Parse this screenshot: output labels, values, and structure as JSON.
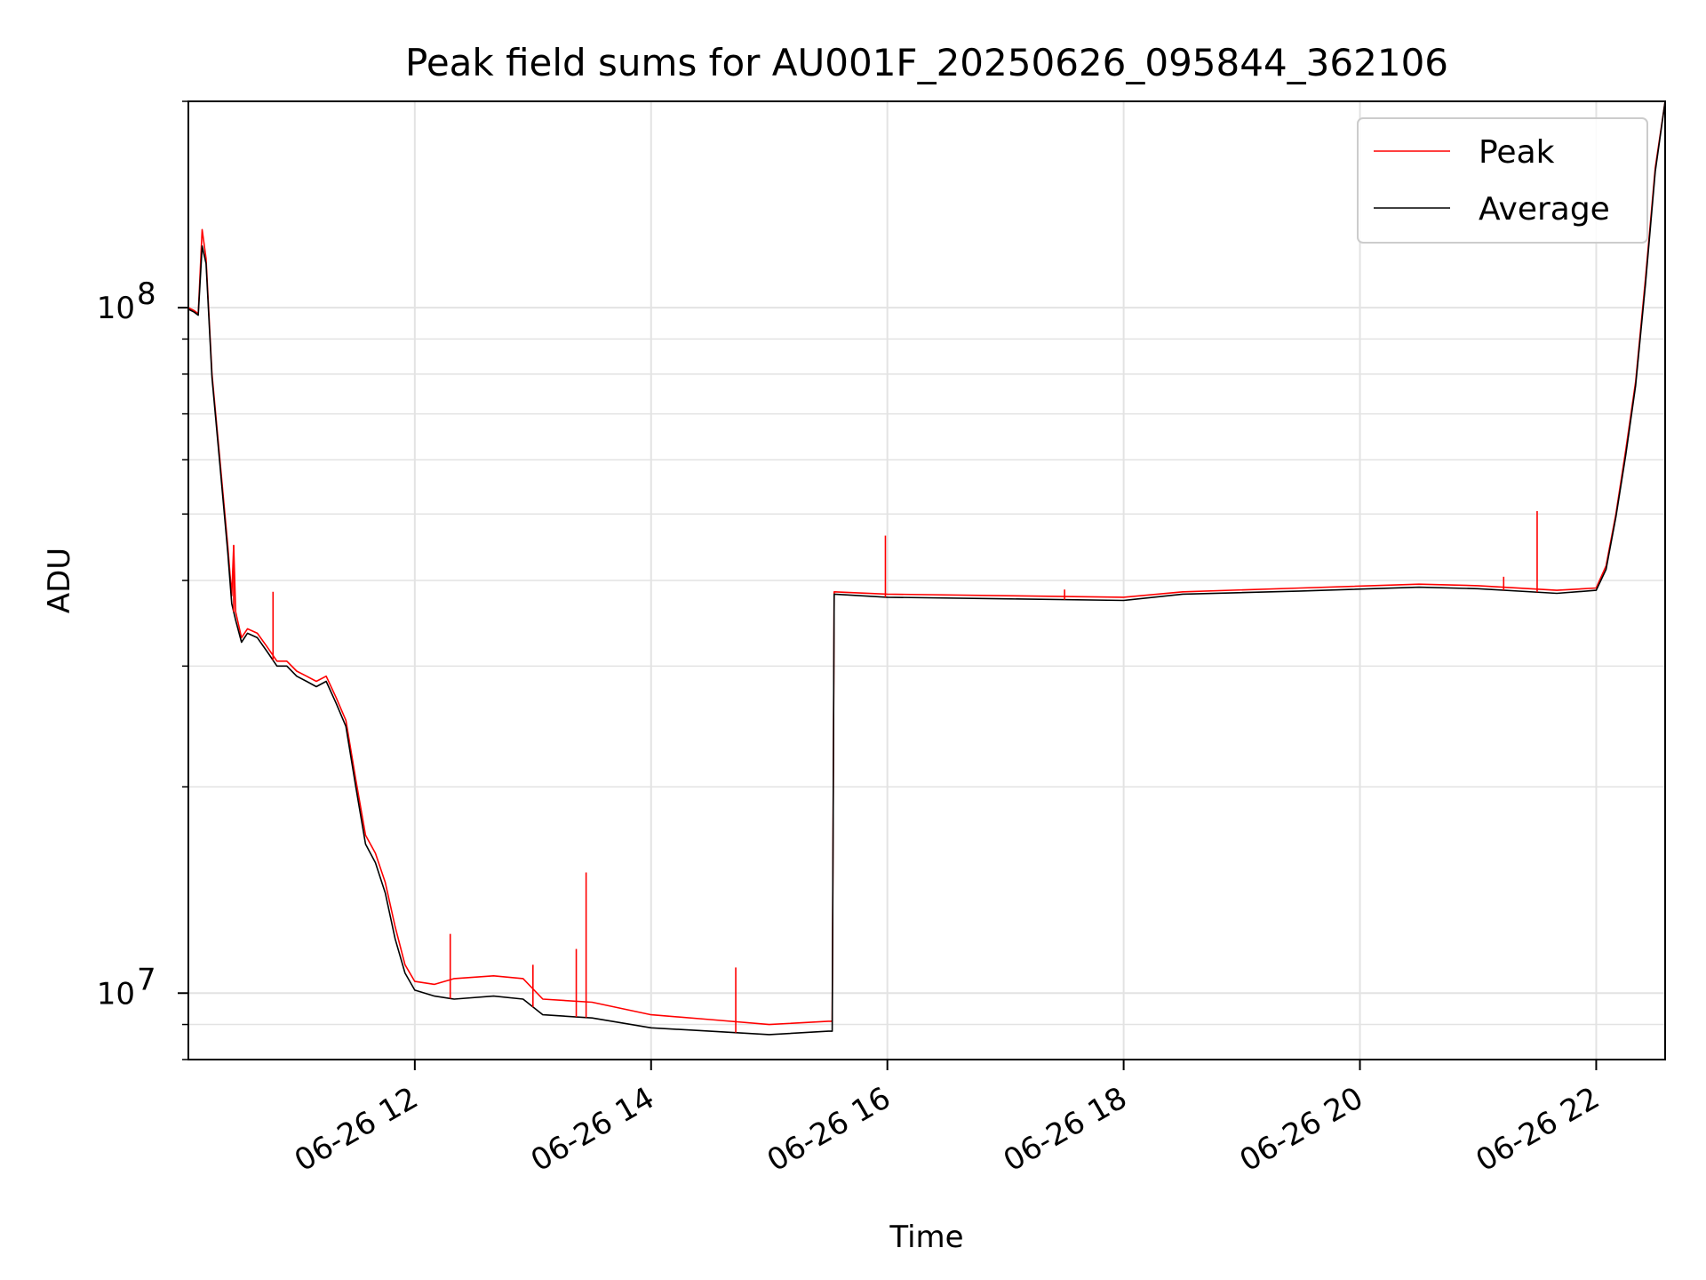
{
  "chart_data": {
    "type": "line",
    "title": "Peak field sums for AU001F_20250626_095844_362106",
    "xlabel": "Time",
    "ylabel": "ADU",
    "yscale": "log",
    "grid": true,
    "legend_position": "top-right",
    "x_format": "%m-%d %H",
    "xlim": [
      "2025-06-26T10:05",
      "2025-06-26T22:35"
    ],
    "ylim": [
      8000000,
      200000000
    ],
    "x_ticks": [
      {
        "value": "2025-06-26T12:00",
        "label": "06-26 12"
      },
      {
        "value": "2025-06-26T14:00",
        "label": "06-26 14"
      },
      {
        "value": "2025-06-26T16:00",
        "label": "06-26 16"
      },
      {
        "value": "2025-06-26T18:00",
        "label": "06-26 18"
      },
      {
        "value": "2025-06-26T20:00",
        "label": "06-26 20"
      },
      {
        "value": "2025-06-26T22:00",
        "label": "06-26 22"
      }
    ],
    "y_major_ticks": [
      {
        "value": 10000000,
        "base": "10",
        "exp": "7"
      },
      {
        "value": 100000000,
        "base": "10",
        "exp": "8"
      }
    ],
    "colors": {
      "peak": "#ff0000",
      "average": "#000000",
      "grid": "#e3e3e3"
    },
    "series": [
      {
        "name": "Peak",
        "color": "#ff0000",
        "points": [
          [
            "2025-06-26T10:05",
            100000000
          ],
          [
            "2025-06-26T10:08",
            99000000
          ],
          [
            "2025-06-26T10:10",
            98000000
          ],
          [
            "2025-06-26T10:12",
            130000000
          ],
          [
            "2025-06-26T10:14",
            118000000
          ],
          [
            "2025-06-26T10:17",
            80000000
          ],
          [
            "2025-06-26T10:21",
            60000000
          ],
          [
            "2025-06-26T10:25",
            45000000
          ],
          [
            "2025-06-26T10:27",
            38000000
          ],
          [
            "2025-06-26T10:28",
            45000000
          ],
          [
            "2025-06-26T10:29",
            36000000
          ],
          [
            "2025-06-26T10:32",
            33000000
          ],
          [
            "2025-06-26T10:35",
            34000000
          ],
          [
            "2025-06-26T10:40",
            33500000
          ],
          [
            "2025-06-26T10:45",
            32000000
          ],
          [
            "2025-06-26T10:50",
            30500000
          ],
          [
            "2025-06-26T10:55",
            30500000
          ],
          [
            "2025-06-26T11:00",
            29500000
          ],
          [
            "2025-06-26T11:05",
            29000000
          ],
          [
            "2025-06-26T11:10",
            28500000
          ],
          [
            "2025-06-26T11:15",
            29000000
          ],
          [
            "2025-06-26T11:20",
            27000000
          ],
          [
            "2025-06-26T11:25",
            25000000
          ],
          [
            "2025-06-26T11:30",
            20500000
          ],
          [
            "2025-06-26T11:35",
            17000000
          ],
          [
            "2025-06-26T11:40",
            16000000
          ],
          [
            "2025-06-26T11:45",
            14500000
          ],
          [
            "2025-06-26T11:50",
            12500000
          ],
          [
            "2025-06-26T11:55",
            11000000
          ],
          [
            "2025-06-26T12:00",
            10400000
          ],
          [
            "2025-06-26T12:10",
            10300000
          ],
          [
            "2025-06-26T12:20",
            10500000
          ],
          [
            "2025-06-26T12:40",
            10600000
          ],
          [
            "2025-06-26T12:55",
            10500000
          ],
          [
            "2025-06-26T13:05",
            9800000
          ],
          [
            "2025-06-26T13:30",
            9700000
          ],
          [
            "2025-06-26T14:00",
            9300000
          ],
          [
            "2025-06-26T14:30",
            9150000
          ],
          [
            "2025-06-26T15:00",
            9000000
          ],
          [
            "2025-06-26T15:30",
            9100000
          ],
          [
            "2025-06-26T15:32",
            9100000
          ],
          [
            "2025-06-26T15:33",
            38500000
          ],
          [
            "2025-06-26T16:00",
            38200000
          ],
          [
            "2025-06-26T17:00",
            38000000
          ],
          [
            "2025-06-26T18:00",
            37800000
          ],
          [
            "2025-06-26T18:30",
            38500000
          ],
          [
            "2025-06-26T19:30",
            39000000
          ],
          [
            "2025-06-26T20:30",
            39500000
          ],
          [
            "2025-06-26T21:00",
            39300000
          ],
          [
            "2025-06-26T21:40",
            38700000
          ],
          [
            "2025-06-26T22:00",
            39000000
          ],
          [
            "2025-06-26T22:05",
            42000000
          ],
          [
            "2025-06-26T22:10",
            50000000
          ],
          [
            "2025-06-26T22:15",
            62000000
          ],
          [
            "2025-06-26T22:20",
            78000000
          ],
          [
            "2025-06-26T22:25",
            110000000
          ],
          [
            "2025-06-26T22:30",
            160000000
          ],
          [
            "2025-06-26T22:35",
            200000000
          ]
        ],
        "spikes": [
          [
            "2025-06-26T10:28",
            45000000
          ],
          [
            "2025-06-26T10:48",
            38500000
          ],
          [
            "2025-06-26T12:18",
            12200000
          ],
          [
            "2025-06-26T13:00",
            11000000
          ],
          [
            "2025-06-26T13:22",
            11600000
          ],
          [
            "2025-06-26T13:27",
            15000000
          ],
          [
            "2025-06-26T14:43",
            10900000
          ],
          [
            "2025-06-26T15:59",
            46500000
          ],
          [
            "2025-06-26T17:30",
            38800000
          ],
          [
            "2025-06-26T21:13",
            40500000
          ],
          [
            "2025-06-26T21:30",
            50500000
          ]
        ]
      },
      {
        "name": "Average",
        "color": "#000000",
        "points": [
          [
            "2025-06-26T10:05",
            99500000
          ],
          [
            "2025-06-26T10:08",
            98500000
          ],
          [
            "2025-06-26T10:10",
            97500000
          ],
          [
            "2025-06-26T10:12",
            123000000
          ],
          [
            "2025-06-26T10:14",
            116000000
          ],
          [
            "2025-06-26T10:17",
            79000000
          ],
          [
            "2025-06-26T10:21",
            59000000
          ],
          [
            "2025-06-26T10:25",
            44000000
          ],
          [
            "2025-06-26T10:27",
            37000000
          ],
          [
            "2025-06-26T10:29",
            35000000
          ],
          [
            "2025-06-26T10:32",
            32500000
          ],
          [
            "2025-06-26T10:35",
            33500000
          ],
          [
            "2025-06-26T10:40",
            33000000
          ],
          [
            "2025-06-26T10:45",
            31500000
          ],
          [
            "2025-06-26T10:50",
            30000000
          ],
          [
            "2025-06-26T10:55",
            30000000
          ],
          [
            "2025-06-26T11:00",
            29000000
          ],
          [
            "2025-06-26T11:05",
            28500000
          ],
          [
            "2025-06-26T11:10",
            28000000
          ],
          [
            "2025-06-26T11:15",
            28500000
          ],
          [
            "2025-06-26T11:20",
            26500000
          ],
          [
            "2025-06-26T11:25",
            24500000
          ],
          [
            "2025-06-26T11:30",
            20000000
          ],
          [
            "2025-06-26T11:35",
            16500000
          ],
          [
            "2025-06-26T11:40",
            15500000
          ],
          [
            "2025-06-26T11:45",
            14000000
          ],
          [
            "2025-06-26T11:50",
            12000000
          ],
          [
            "2025-06-26T11:55",
            10700000
          ],
          [
            "2025-06-26T12:00",
            10100000
          ],
          [
            "2025-06-26T12:10",
            9900000
          ],
          [
            "2025-06-26T12:20",
            9800000
          ],
          [
            "2025-06-26T12:40",
            9900000
          ],
          [
            "2025-06-26T12:55",
            9800000
          ],
          [
            "2025-06-26T13:05",
            9300000
          ],
          [
            "2025-06-26T13:30",
            9200000
          ],
          [
            "2025-06-26T14:00",
            8900000
          ],
          [
            "2025-06-26T14:30",
            8800000
          ],
          [
            "2025-06-26T15:00",
            8700000
          ],
          [
            "2025-06-26T15:30",
            8800000
          ],
          [
            "2025-06-26T15:32",
            8800000
          ],
          [
            "2025-06-26T15:33",
            38200000
          ],
          [
            "2025-06-26T16:00",
            37800000
          ],
          [
            "2025-06-26T17:00",
            37600000
          ],
          [
            "2025-06-26T18:00",
            37400000
          ],
          [
            "2025-06-26T18:30",
            38200000
          ],
          [
            "2025-06-26T19:30",
            38600000
          ],
          [
            "2025-06-26T20:30",
            39100000
          ],
          [
            "2025-06-26T21:00",
            38900000
          ],
          [
            "2025-06-26T21:40",
            38300000
          ],
          [
            "2025-06-26T22:00",
            38700000
          ],
          [
            "2025-06-26T22:05",
            41500000
          ],
          [
            "2025-06-26T22:10",
            49500000
          ],
          [
            "2025-06-26T22:15",
            61000000
          ],
          [
            "2025-06-26T22:20",
            77000000
          ],
          [
            "2025-06-26T22:25",
            108000000
          ],
          [
            "2025-06-26T22:30",
            158000000
          ],
          [
            "2025-06-26T22:35",
            200000000
          ]
        ]
      }
    ]
  }
}
